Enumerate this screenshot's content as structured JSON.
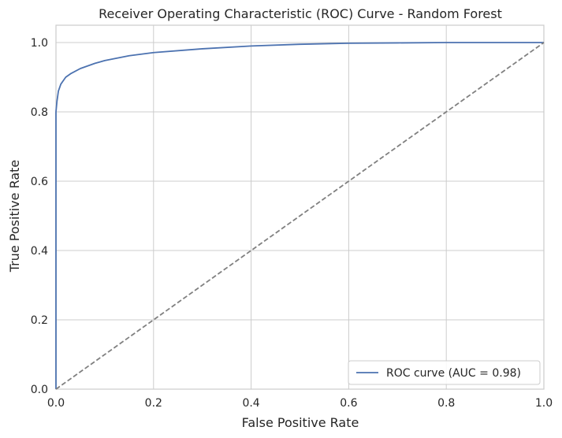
{
  "chart_data": {
    "type": "line",
    "title": "Receiver Operating Characteristic (ROC) Curve - Random Forest",
    "xlabel": "False Positive Rate",
    "ylabel": "True Positive Rate",
    "xlim": [
      0.0,
      1.0
    ],
    "ylim": [
      0.0,
      1.05
    ],
    "xticks": [
      "0.0",
      "0.2",
      "0.4",
      "0.6",
      "0.8",
      "1.0"
    ],
    "yticks": [
      "0.0",
      "0.2",
      "0.4",
      "0.6",
      "0.8",
      "1.0"
    ],
    "grid": true,
    "legend_position": "lower-right",
    "series": [
      {
        "name": "ROC curve (AUC = 0.98)",
        "color": "#4c72b0",
        "style": "solid",
        "x": [
          0.0,
          0.0,
          0.002,
          0.005,
          0.01,
          0.015,
          0.02,
          0.03,
          0.05,
          0.08,
          0.1,
          0.15,
          0.2,
          0.3,
          0.4,
          0.5,
          0.6,
          0.7,
          0.8,
          0.9,
          1.0
        ],
        "y": [
          0.0,
          0.8,
          0.83,
          0.86,
          0.88,
          0.89,
          0.9,
          0.91,
          0.925,
          0.94,
          0.948,
          0.962,
          0.971,
          0.982,
          0.99,
          0.995,
          0.998,
          0.999,
          1.0,
          1.0,
          1.0
        ]
      },
      {
        "name": "",
        "color": "#808080",
        "style": "dashed",
        "x": [
          0.0,
          1.0
        ],
        "y": [
          0.0,
          1.0
        ]
      }
    ]
  }
}
